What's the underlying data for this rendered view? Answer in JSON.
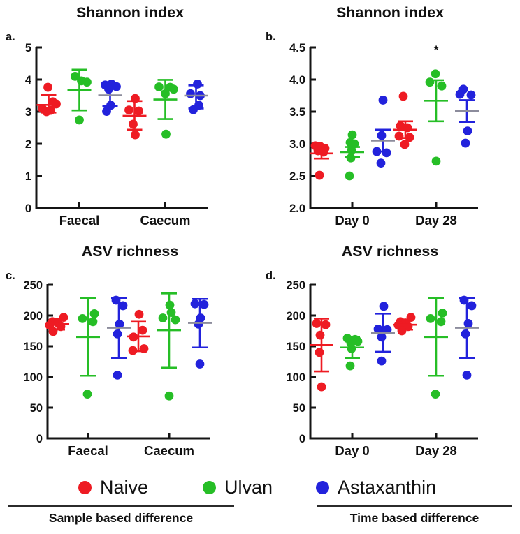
{
  "colors": {
    "axis": "#141414"
  },
  "legend": {
    "items": [
      {
        "label": "Naive",
        "color": "#EE1B23"
      },
      {
        "label": "Ulvan",
        "color": "#26BE26"
      },
      {
        "label": "Astaxanthin",
        "color": "#2222DC",
        "mean_color": "#8C8C9C"
      }
    ]
  },
  "footers": {
    "items": [
      {
        "label": "Sample based difference"
      },
      {
        "label": "Time based difference"
      }
    ]
  },
  "chart_data": [
    {
      "type": "scatter",
      "letter": "a.",
      "title": "Shannon index",
      "ylim": [
        0,
        5
      ],
      "yticks": [
        {
          "v": 0,
          "t": "0"
        },
        {
          "v": 1,
          "t": "1"
        },
        {
          "v": 2,
          "t": "2"
        },
        {
          "v": 3,
          "t": "3"
        },
        {
          "v": 4,
          "t": "4"
        },
        {
          "v": 5,
          "t": "5"
        }
      ],
      "categories": [
        "Faecal",
        "Caecum"
      ],
      "series": [
        {
          "name": "Naive",
          "by_category": [
            {
              "points": [
                [
                  -1,
                  3.76
                ],
                [
                  6,
                  3.31
                ],
                [
                  11,
                  3.24
                ],
                [
                  -9,
                  3.1
                ],
                [
                  3,
                  3.04
                ],
                [
                  -3,
                  3.0
                ]
              ],
              "mean": 3.21,
              "err_lo": 2.97,
              "err_hi": 3.52
            },
            {
              "points": [
                [
                  1,
                  3.41
                ],
                [
                  -8,
                  3.05
                ],
                [
                  6,
                  3.02
                ],
                [
                  -2,
                  2.61
                ],
                [
                  1,
                  2.28
                ]
              ],
              "mean": 2.87,
              "err_lo": 2.44,
              "err_hi": 3.33
            }
          ]
        },
        {
          "name": "Ulvan",
          "by_category": [
            {
              "points": [
                [
                  -6,
                  4.1
                ],
                [
                  3,
                  3.96
                ],
                [
                  11,
                  3.92
                ],
                [
                  0,
                  2.74
                ]
              ],
              "mean": 3.68,
              "err_lo": 3.04,
              "err_hi": 4.31
            },
            {
              "points": [
                [
                  -9,
                  3.77
                ],
                [
                  7,
                  3.76
                ],
                [
                  12,
                  3.7
                ],
                [
                  0,
                  3.56
                ],
                [
                  1,
                  2.3
                ]
              ],
              "mean": 3.38,
              "err_lo": 2.77,
              "err_hi": 3.99
            }
          ]
        },
        {
          "name": "Astaxanthin",
          "by_category": [
            {
              "points": [
                [
                  -7,
                  3.83
                ],
                [
                  2,
                  3.86
                ],
                [
                  9,
                  3.78
                ],
                [
                  -2,
                  3.7
                ],
                [
                  1,
                  3.2
                ],
                [
                  -5,
                  3.01
                ]
              ],
              "mean": 3.51,
              "err_lo": 3.18,
              "err_hi": 3.82
            },
            {
              "points": [
                [
                  2,
                  3.86
                ],
                [
                  -8,
                  3.56
                ],
                [
                  6,
                  3.5
                ],
                [
                  4,
                  3.2
                ],
                [
                  -4,
                  3.06
                ]
              ],
              "mean": 3.5,
              "err_lo": 3.1,
              "err_hi": 3.82
            }
          ]
        }
      ],
      "annotations": []
    },
    {
      "type": "scatter",
      "letter": "b.",
      "title": "Shannon index",
      "ylim": [
        2.0,
        4.5
      ],
      "yticks": [
        {
          "v": 2.0,
          "t": "2.0"
        },
        {
          "v": 2.5,
          "t": "2.5"
        },
        {
          "v": 3.0,
          "t": "3.0"
        },
        {
          "v": 3.5,
          "t": "3.5"
        },
        {
          "v": 4.0,
          "t": "4.0"
        },
        {
          "v": 4.5,
          "t": "4.5"
        }
      ],
      "categories": [
        "Day 0",
        "Day 28"
      ],
      "series": [
        {
          "name": "Naive",
          "by_category": [
            {
              "points": [
                [
                  -9,
                  2.97
                ],
                [
                  -2,
                  2.96
                ],
                [
                  5,
                  2.93
                ],
                [
                  -5,
                  2.89
                ],
                [
                  3,
                  2.87
                ],
                [
                  -3,
                  2.51
                ]
              ],
              "mean": 2.85,
              "err_lo": 2.77,
              "err_hi": 2.93
            },
            {
              "points": [
                [
                  -3,
                  3.74
                ],
                [
                  -7,
                  3.28
                ],
                [
                  3,
                  3.25
                ],
                [
                  -9,
                  3.12
                ],
                [
                  6,
                  3.1
                ],
                [
                  -1,
                  2.99
                ]
              ],
              "mean": 3.22,
              "err_lo": 3.09,
              "err_hi": 3.35
            }
          ]
        },
        {
          "name": "Ulvan",
          "by_category": [
            {
              "points": [
                [
                  0,
                  3.14
                ],
                [
                  -3,
                  3.02
                ],
                [
                  3,
                  3.0
                ],
                [
                  -1,
                  2.9
                ],
                [
                  -2,
                  2.78
                ],
                [
                  -4,
                  2.5
                ]
              ],
              "mean": 2.87,
              "err_lo": 2.79,
              "err_hi": 2.95
            },
            {
              "points": [
                [
                  -1,
                  4.09
                ],
                [
                  -9,
                  3.96
                ],
                [
                  8,
                  3.9
                ],
                [
                  0,
                  2.73
                ]
              ],
              "mean": 3.67,
              "err_lo": 3.35,
              "err_hi": 3.99
            }
          ]
        },
        {
          "name": "Astaxanthin",
          "by_category": [
            {
              "points": [
                [
                  0,
                  3.68
                ],
                [
                  -2,
                  3.13
                ],
                [
                  -9,
                  2.88
                ],
                [
                  5,
                  2.86
                ],
                [
                  -3,
                  2.7
                ]
              ],
              "mean": 3.05,
              "err_lo": 2.88,
              "err_hi": 3.22
            },
            {
              "points": [
                [
                  -5,
                  3.85
                ],
                [
                  -10,
                  3.77
                ],
                [
                  6,
                  3.76
                ],
                [
                  1,
                  3.2
                ],
                [
                  -2,
                  3.01
                ]
              ],
              "mean": 3.51,
              "err_lo": 3.34,
              "err_hi": 3.68
            }
          ]
        }
      ],
      "annotations": [
        {
          "category": 1,
          "group": 1,
          "value": 4.4,
          "text": "*"
        }
      ]
    },
    {
      "type": "scatter",
      "letter": "c.",
      "title": "ASV richness",
      "ylim": [
        0,
        250
      ],
      "yticks": [
        {
          "v": 0,
          "t": "0"
        },
        {
          "v": 50,
          "t": "50"
        },
        {
          "v": 100,
          "t": "100"
        },
        {
          "v": 150,
          "t": "150"
        },
        {
          "v": 200,
          "t": "200"
        },
        {
          "v": 250,
          "t": "250"
        }
      ],
      "categories": [
        "Faecal",
        "Caecum"
      ],
      "series": [
        {
          "name": "Naive",
          "by_category": [
            {
              "points": [
                [
                  9,
                  197
                ],
                [
                  -7,
                  190
                ],
                [
                  1,
                  188
                ],
                [
                  -11,
                  184
                ],
                [
                  5,
                  182
                ],
                [
                  -6,
                  174
                ]
              ],
              "mean": 186,
              "err_lo": 177,
              "err_hi": 195
            },
            {
              "points": [
                [
                  1,
                  202
                ],
                [
                  6,
                  176
                ],
                [
                  -7,
                  165
                ],
                [
                  8,
                  146
                ],
                [
                  -8,
                  143
                ]
              ],
              "mean": 166,
              "err_lo": 142,
              "err_hi": 190
            }
          ]
        },
        {
          "name": "Ulvan",
          "by_category": [
            {
              "points": [
                [
                  9,
                  203
                ],
                [
                  -8,
                  195
                ],
                [
                  7,
                  190
                ],
                [
                  -1,
                  72
                ]
              ],
              "mean": 165,
              "err_lo": 102,
              "err_hi": 228
            },
            {
              "points": [
                [
                  1,
                  217
                ],
                [
                  3,
                  205
                ],
                [
                  -9,
                  196
                ],
                [
                  9,
                  193
                ],
                [
                  0,
                  69
                ]
              ],
              "mean": 176,
              "err_lo": 115,
              "err_hi": 236
            }
          ]
        },
        {
          "name": "Astaxanthin",
          "by_category": [
            {
              "points": [
                [
                  -4,
                  225
                ],
                [
                  6,
                  216
                ],
                [
                  1,
                  186
                ],
                [
                  -2,
                  170
                ],
                [
                  -2,
                  103
                ]
              ],
              "mean": 180,
              "err_lo": 131,
              "err_hi": 228
            },
            {
              "points": [
                [
                  -7,
                  219
                ],
                [
                  6,
                  218
                ],
                [
                  1,
                  196
                ],
                [
                  -2,
                  186
                ],
                [
                  0,
                  121
                ]
              ],
              "mean": 188,
              "err_lo": 148,
              "err_hi": 227
            }
          ]
        }
      ],
      "annotations": []
    },
    {
      "type": "scatter",
      "letter": "d.",
      "title": "ASV richness",
      "ylim": [
        0,
        250
      ],
      "yticks": [
        {
          "v": 0,
          "t": "0"
        },
        {
          "v": 50,
          "t": "50"
        },
        {
          "v": 100,
          "t": "100"
        },
        {
          "v": 150,
          "t": "150"
        },
        {
          "v": 200,
          "t": "200"
        },
        {
          "v": 250,
          "t": "250"
        }
      ],
      "categories": [
        "Day 0",
        "Day 28"
      ],
      "series": [
        {
          "name": "Naive",
          "by_category": [
            {
              "points": [
                [
                  -7,
                  187
                ],
                [
                  6,
                  185
                ],
                [
                  -2,
                  168
                ],
                [
                  -3,
                  140
                ],
                [
                  0,
                  84
                ]
              ],
              "mean": 152,
              "err_lo": 109,
              "err_hi": 195
            },
            {
              "points": [
                [
                  8,
                  197
                ],
                [
                  -7,
                  190
                ],
                [
                  0,
                  188
                ],
                [
                  -10,
                  184
                ],
                [
                  4,
                  182
                ],
                [
                  -5,
                  175
                ]
              ],
              "mean": 185,
              "err_lo": 177,
              "err_hi": 193
            }
          ]
        },
        {
          "name": "Ulvan",
          "by_category": [
            {
              "points": [
                [
                  -7,
                  163
                ],
                [
                  4,
                  161
                ],
                [
                  8,
                  158
                ],
                [
                  -2,
                  155
                ],
                [
                  -1,
                  146
                ],
                [
                  -3,
                  118
                ]
              ],
              "mean": 148,
              "err_lo": 131,
              "err_hi": 165
            },
            {
              "points": [
                [
                  9,
                  204
                ],
                [
                  -8,
                  195
                ],
                [
                  7,
                  190
                ],
                [
                  -1,
                  72
                ]
              ],
              "mean": 165,
              "err_lo": 102,
              "err_hi": 228
            }
          ]
        },
        {
          "name": "Astaxanthin",
          "by_category": [
            {
              "points": [
                [
                  1,
                  215
                ],
                [
                  -7,
                  178
                ],
                [
                  6,
                  177
                ],
                [
                  -2,
                  165
                ],
                [
                  -2,
                  126
                ]
              ],
              "mean": 172,
              "err_lo": 141,
              "err_hi": 203
            },
            {
              "points": [
                [
                  -4,
                  225
                ],
                [
                  7,
                  216
                ],
                [
                  2,
                  187
                ],
                [
                  -2,
                  170
                ],
                [
                  0,
                  103
                ]
              ],
              "mean": 180,
              "err_lo": 131,
              "err_hi": 228
            }
          ]
        }
      ],
      "annotations": []
    }
  ]
}
